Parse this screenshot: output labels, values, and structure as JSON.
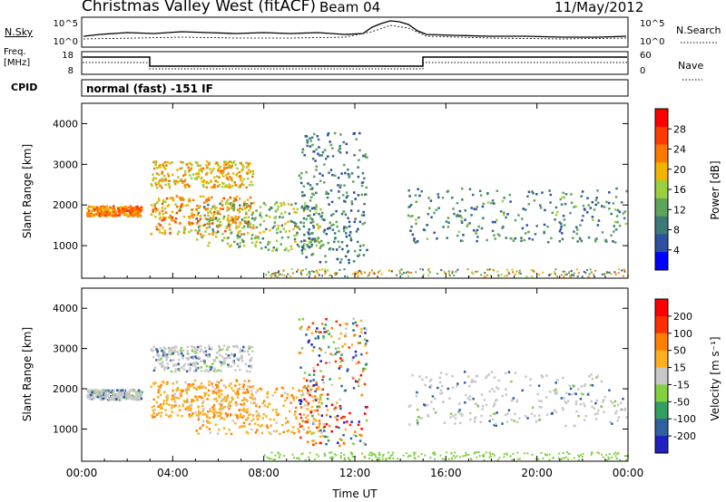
{
  "header": {
    "title": "Christmas Valley West (fitACF)",
    "beam": "Beam 04",
    "date": "11/May/2012"
  },
  "strip": {
    "nsky_label": "N.Sky",
    "nsearch_label": "N.Search",
    "freq_label_line1": "Freq.",
    "freq_label_line2": "[MHz]",
    "nave_label": "Nave",
    "cpid_label": "CPID",
    "mode_text": "normal (fast) -151 IF",
    "noise_left_ticks": [
      "10^5",
      "10^0"
    ],
    "noise_right_ticks": [
      "10^5",
      "10^0"
    ],
    "freq_ticks": [
      "18",
      "8"
    ],
    "nave_ticks": [
      "60",
      "0"
    ]
  },
  "chart_data": [
    {
      "type": "heatmap",
      "panel": "power",
      "ylabel": "Slant Range [km]",
      "yticks": [
        "1000",
        "2000",
        "3000",
        "4000"
      ],
      "xticks": [
        "00:00",
        "04:00",
        "08:00",
        "12:00",
        "16:00",
        "20:00",
        "00:00"
      ],
      "ylim": [
        200,
        4500
      ],
      "colorbar_label": "Power [dB]",
      "colorbar_ticks": [
        "28",
        "24",
        "20",
        "16",
        "12",
        "8",
        "4"
      ],
      "colorscale": [
        "#0000ff",
        "#2f4fa0",
        "#3c7a78",
        "#5da55a",
        "#9ad040",
        "#f2b400",
        "#ff7800",
        "#ff3c00",
        "#ff0000"
      ],
      "features": [
        {
          "name": "arc_low",
          "t0": 0.2,
          "t1": 2.6,
          "r0": 1750,
          "r1": 2000,
          "power": 24
        },
        {
          "name": "arc_low2",
          "t0": 3.0,
          "t1": 7.5,
          "r0": 1300,
          "r1": 2250,
          "power": 22
        },
        {
          "name": "arc_high",
          "t0": 3.0,
          "t1": 7.5,
          "r0": 2450,
          "r1": 3100,
          "power": 20
        },
        {
          "name": "band_late",
          "t0": 5.0,
          "t1": 10.5,
          "r0": 900,
          "r1": 2100,
          "power": 14
        },
        {
          "name": "plume",
          "t0": 9.5,
          "t1": 12.5,
          "r0": 600,
          "r1": 3800,
          "power": 8
        },
        {
          "name": "evening_arc",
          "t0": 14.3,
          "t1": 23.9,
          "r0": 1100,
          "r1": 2450,
          "power": 9
        }
      ]
    },
    {
      "type": "heatmap",
      "panel": "velocity",
      "ylabel": "Slant Range [km]",
      "yticks": [
        "1000",
        "2000",
        "3000",
        "4000"
      ],
      "xticks": [
        "00:00",
        "04:00",
        "08:00",
        "12:00",
        "16:00",
        "20:00",
        "00:00"
      ],
      "xlabel": "Time UT",
      "ylim": [
        200,
        4500
      ],
      "colorbar_label": "Velocity [m s⁻¹]",
      "colorbar_ticks": [
        "200",
        "100",
        "50",
        "15",
        "-15",
        "-50",
        "-100",
        "-200"
      ],
      "colorscale": [
        "#2020c0",
        "#3060a0",
        "#30a060",
        "#80d040",
        "#c8c8c8",
        "#ffb020",
        "#ff8000",
        "#ff3000",
        "#ff0000"
      ]
    }
  ]
}
